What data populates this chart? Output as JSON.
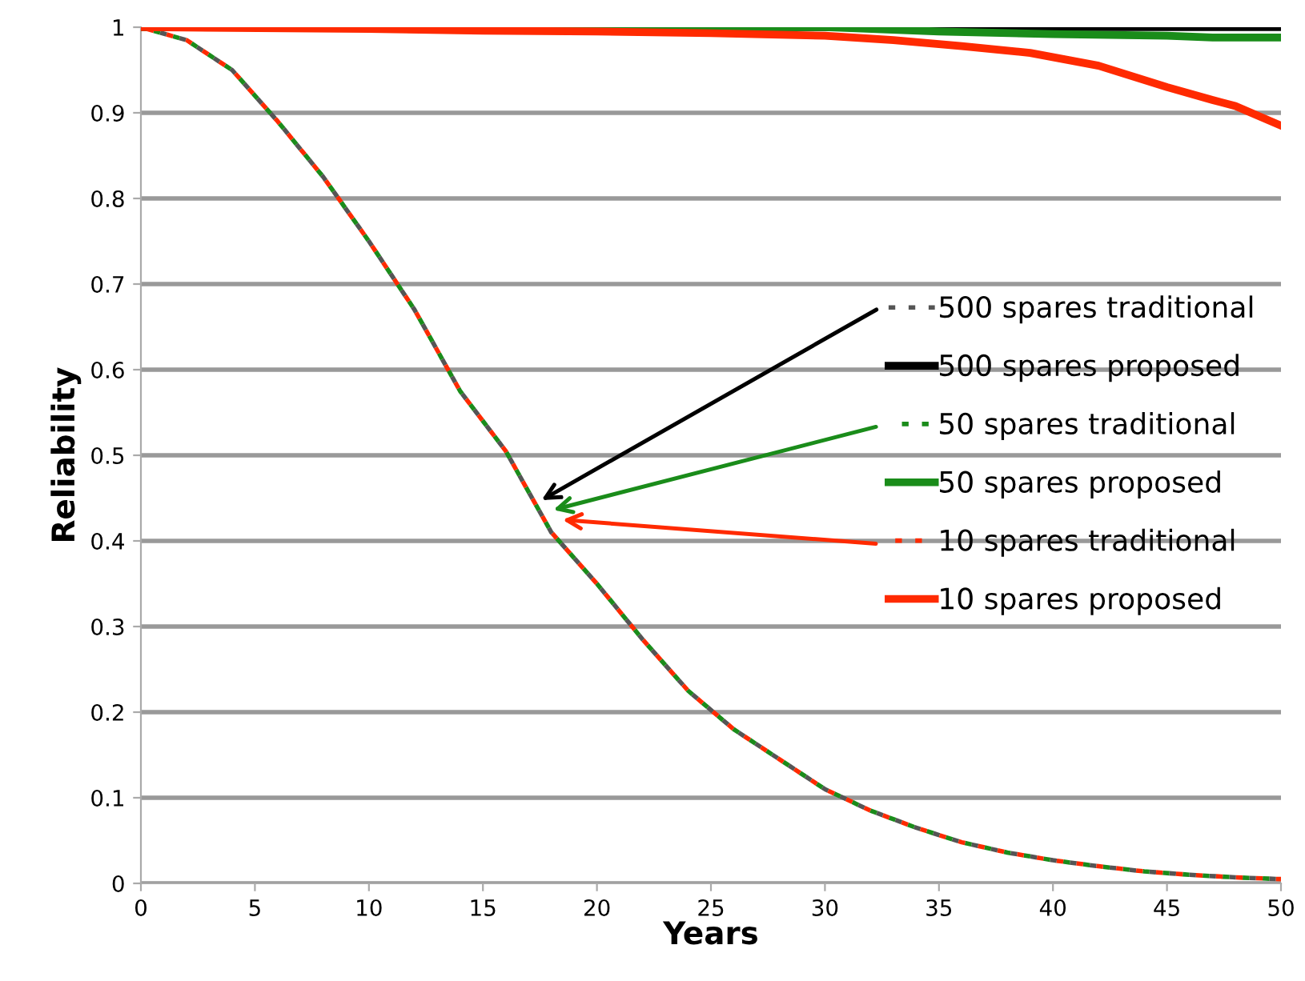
{
  "chart_data": {
    "type": "line",
    "xlabel": "Years",
    "ylabel": "Reliability",
    "xlim": [
      0,
      50
    ],
    "xticks": [
      0,
      5,
      10,
      15,
      20,
      25,
      30,
      35,
      40,
      45,
      50
    ],
    "ylim": [
      0,
      1
    ],
    "yticks": [
      0,
      0.1,
      0.2,
      0.3,
      0.4,
      0.5,
      0.6,
      0.7,
      0.8,
      0.9,
      1
    ],
    "grid": "y",
    "legend": "right",
    "series": [
      {
        "name": "500 spares traditional",
        "color": "#555555",
        "line_style": "dotted",
        "x": [
          0,
          2,
          4,
          6,
          8,
          10,
          12,
          14,
          16,
          18,
          20,
          22,
          24,
          26,
          28,
          30,
          32,
          34,
          36,
          38,
          40,
          42,
          44,
          46,
          48,
          50
        ],
        "values": [
          1,
          0.985,
          0.95,
          0.89,
          0.825,
          0.75,
          0.67,
          0.575,
          0.505,
          0.41,
          0.35,
          0.285,
          0.225,
          0.18,
          0.145,
          0.11,
          0.085,
          0.065,
          0.048,
          0.036,
          0.027,
          0.02,
          0.014,
          0.01,
          0.007,
          0.005
        ]
      },
      {
        "name": "500 spares proposed",
        "color": "#000000",
        "line_style": "solid",
        "x": [
          0,
          50
        ],
        "values": [
          1,
          1
        ]
      },
      {
        "name": "50 spares traditional",
        "color": "#1a8c1a",
        "line_style": "dotted",
        "x": [
          0,
          2,
          4,
          6,
          8,
          10,
          12,
          14,
          16,
          18,
          20,
          22,
          24,
          26,
          28,
          30,
          32,
          34,
          36,
          38,
          40,
          42,
          44,
          46,
          48,
          50
        ],
        "values": [
          1,
          0.985,
          0.95,
          0.89,
          0.825,
          0.75,
          0.67,
          0.575,
          0.505,
          0.41,
          0.35,
          0.285,
          0.225,
          0.18,
          0.145,
          0.11,
          0.085,
          0.065,
          0.048,
          0.036,
          0.027,
          0.02,
          0.014,
          0.01,
          0.007,
          0.005
        ]
      },
      {
        "name": "50 spares proposed",
        "color": "#1a8c1a",
        "line_style": "solid",
        "x": [
          0,
          30,
          35,
          40,
          45,
          47,
          50
        ],
        "values": [
          1,
          1,
          0.995,
          0.992,
          0.99,
          0.988,
          0.988
        ]
      },
      {
        "name": "10 spares traditional",
        "color": "#ff2a00",
        "line_style": "dotted",
        "x": [
          0,
          2,
          4,
          6,
          8,
          10,
          12,
          14,
          16,
          18,
          20,
          22,
          24,
          26,
          28,
          30,
          32,
          34,
          36,
          38,
          40,
          42,
          44,
          46,
          48,
          50
        ],
        "values": [
          1,
          0.985,
          0.95,
          0.89,
          0.825,
          0.75,
          0.67,
          0.575,
          0.505,
          0.41,
          0.35,
          0.285,
          0.225,
          0.18,
          0.145,
          0.11,
          0.085,
          0.065,
          0.048,
          0.036,
          0.027,
          0.02,
          0.014,
          0.01,
          0.007,
          0.005
        ]
      },
      {
        "name": "10 spares proposed",
        "color": "#ff2a00",
        "line_style": "solid",
        "x": [
          0,
          10,
          15,
          20,
          25,
          30,
          33,
          36,
          39,
          42,
          45,
          47,
          48,
          50
        ],
        "values": [
          1,
          0.998,
          0.996,
          0.995,
          0.993,
          0.99,
          0.985,
          0.978,
          0.97,
          0.955,
          0.93,
          0.915,
          0.908,
          0.885
        ]
      }
    ]
  }
}
